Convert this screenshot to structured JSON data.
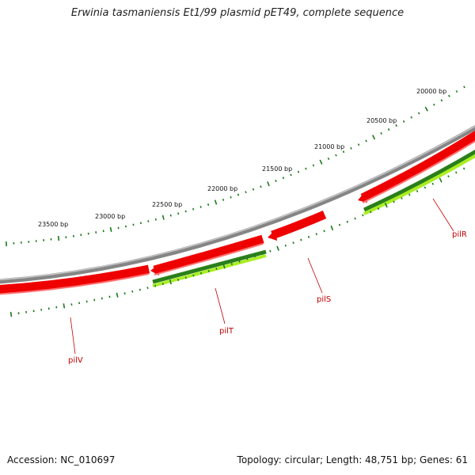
{
  "title": "Erwinia tasmaniensis Et1/99 plasmid pET49, complete sequence",
  "footer": {
    "accession": "Accession: NC_010697",
    "topology": "Topology: circular; Length: 48,751 bp; Genes: 61"
  },
  "scale_labels": [
    "20000 bp",
    "20500 bp",
    "21000 bp",
    "21500 bp",
    "22000 bp",
    "22500 bp",
    "23000 bp",
    "23500 bp"
  ],
  "genes": [
    {
      "name": "pilR"
    },
    {
      "name": "pilS"
    },
    {
      "name": "pilT"
    },
    {
      "name": "pilV"
    }
  ],
  "colors": {
    "backbone": "#888888",
    "gene_red": "#ee0000",
    "gene_dark_green": "#2a7f1a",
    "gene_light_green": "#aaee22",
    "ticks": "#1a7a1a",
    "label_red": "#c00000"
  }
}
